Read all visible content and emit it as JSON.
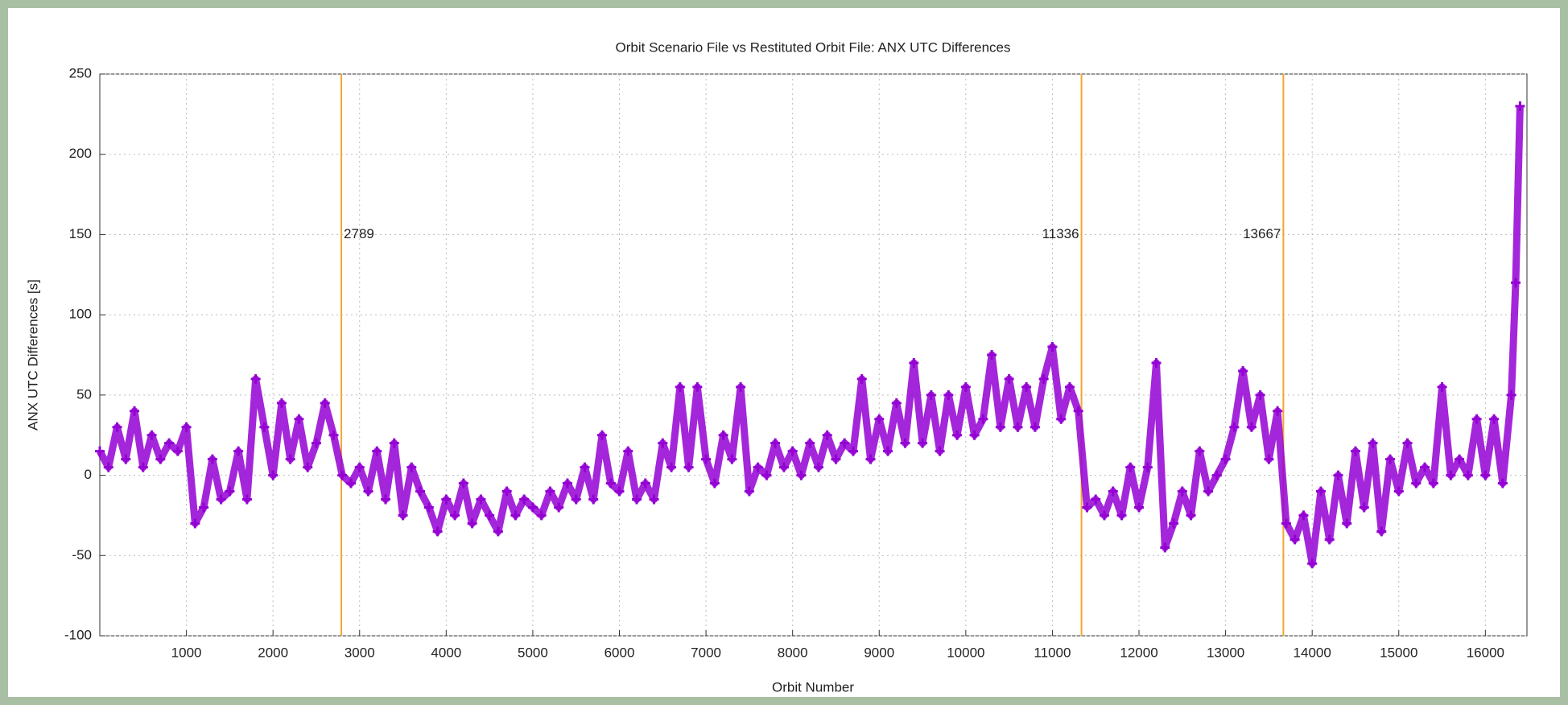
{
  "chart_data": {
    "type": "scatter",
    "title": "Orbit Scenario File vs Restituted Orbit File: ANX UTC Differences",
    "x_label": "Orbit Number",
    "y_label": "ANX UTC Differences [s]",
    "xlim": [
      0,
      16480
    ],
    "ylim": [
      -100,
      250
    ],
    "xticks": [
      1000,
      2000,
      3000,
      4000,
      5000,
      6000,
      7000,
      8000,
      9000,
      10000,
      11000,
      12000,
      13000,
      14000,
      15000,
      16000
    ],
    "yticks": [
      -100,
      -50,
      0,
      50,
      100,
      150,
      200,
      250
    ],
    "grid": true,
    "annotations": [
      2789,
      11336,
      13667
    ],
    "annotation_color": "#f2a531",
    "series": [
      {
        "color": "#9400d3",
        "x": [
          0,
          100,
          200,
          300,
          400,
          500,
          600,
          700,
          800,
          900,
          1000,
          1100,
          1200,
          1300,
          1400,
          1500,
          1600,
          1700,
          1800,
          1900,
          2000,
          2100,
          2200,
          2300,
          2400,
          2500,
          2600,
          2700,
          2800,
          2900,
          3000,
          3100,
          3200,
          3300,
          3400,
          3500,
          3600,
          3700,
          3800,
          3900,
          4000,
          4100,
          4200,
          4300,
          4400,
          4500,
          4600,
          4700,
          4800,
          4900,
          5000,
          5100,
          5200,
          5300,
          5400,
          5500,
          5600,
          5700,
          5800,
          5900,
          6000,
          6100,
          6200,
          6300,
          6400,
          6500,
          6600,
          6700,
          6800,
          6900,
          7000,
          7100,
          7200,
          7300,
          7400,
          7500,
          7600,
          7700,
          7800,
          7900,
          8000,
          8100,
          8200,
          8300,
          8400,
          8500,
          8600,
          8700,
          8800,
          8900,
          9000,
          9100,
          9200,
          9300,
          9400,
          9500,
          9600,
          9700,
          9800,
          9900,
          10000,
          10100,
          10200,
          10300,
          10400,
          10500,
          10600,
          10700,
          10800,
          10900,
          11000,
          11100,
          11200,
          11300,
          11400,
          11500,
          11600,
          11700,
          11800,
          11900,
          12000,
          12100,
          12200,
          12300,
          12400,
          12500,
          12600,
          12700,
          12800,
          12900,
          13000,
          13100,
          13200,
          13300,
          13400,
          13500,
          13600,
          13700,
          13800,
          13900,
          14000,
          14100,
          14200,
          14300,
          14400,
          14500,
          14600,
          14700,
          14800,
          14900,
          15000,
          15100,
          15200,
          15300,
          15400,
          15500,
          15600,
          15700,
          15800,
          15900,
          16000,
          16100,
          16200,
          16300,
          16350,
          16400
        ],
        "values": [
          15,
          5,
          30,
          10,
          40,
          5,
          25,
          10,
          20,
          15,
          30,
          -30,
          -20,
          10,
          -15,
          -10,
          15,
          -15,
          60,
          30,
          0,
          45,
          10,
          35,
          5,
          20,
          45,
          25,
          0,
          -5,
          5,
          -10,
          15,
          -15,
          20,
          -25,
          5,
          -10,
          -20,
          -35,
          -15,
          -25,
          -5,
          -30,
          -15,
          -25,
          -35,
          -10,
          -25,
          -15,
          -20,
          -25,
          -10,
          -20,
          -5,
          -15,
          5,
          -15,
          25,
          -5,
          -10,
          15,
          -15,
          -5,
          -15,
          20,
          5,
          55,
          5,
          55,
          10,
          -5,
          25,
          10,
          55,
          -10,
          5,
          0,
          20,
          5,
          15,
          0,
          20,
          5,
          25,
          10,
          20,
          15,
          60,
          10,
          35,
          15,
          45,
          20,
          70,
          20,
          50,
          15,
          50,
          25,
          55,
          25,
          35,
          75,
          30,
          60,
          30,
          55,
          30,
          60,
          80,
          35,
          55,
          40,
          -20,
          -15,
          -25,
          -10,
          -25,
          5,
          -20,
          5,
          70,
          -45,
          -30,
          -10,
          -25,
          15,
          -10,
          0,
          10,
          30,
          65,
          30,
          50,
          10,
          40,
          -30,
          -40,
          -25,
          -55,
          -10,
          -40,
          0,
          -30,
          15,
          -20,
          20,
          -35,
          10,
          -10,
          20,
          -5,
          5,
          -5,
          55,
          0,
          10,
          0,
          35,
          0,
          35,
          -5,
          50,
          120,
          230
        ]
      }
    ]
  }
}
